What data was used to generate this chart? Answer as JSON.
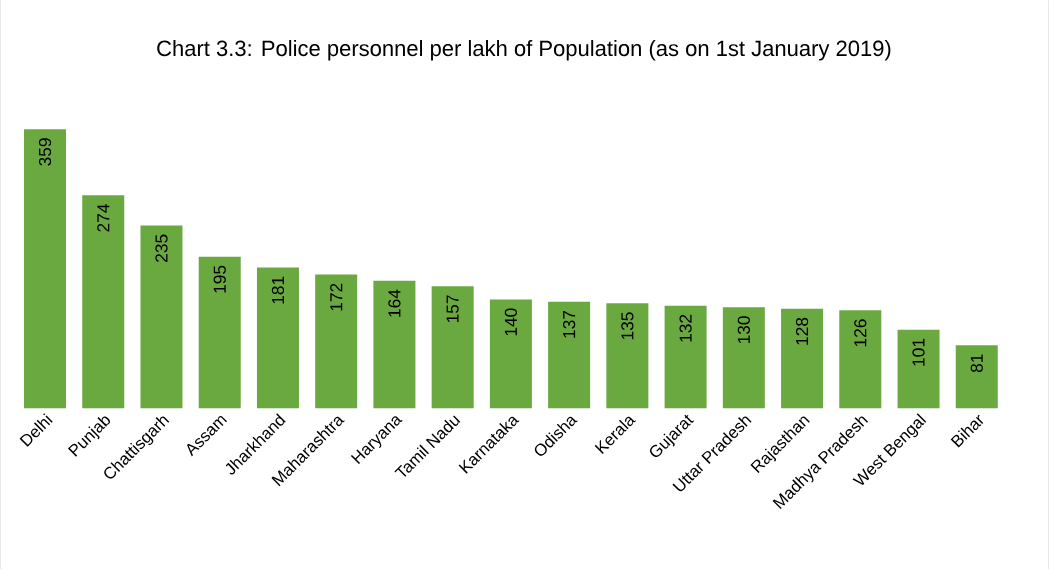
{
  "chart_data": {
    "type": "bar",
    "title": "Chart 3.3: Police personnel per lakh of Population (as on 1st January 2019)",
    "categories": [
      "Delhi",
      "Punjab",
      "Chattisgarh",
      "Assam",
      "Jharkhand",
      "Maharashtra",
      "Haryana",
      "Tamil Nadu",
      "Karnataka",
      "Odisha",
      "Kerala",
      "Gujarat",
      "Uttar Pradesh",
      "Rajasthan",
      "Madhya Pradesh",
      "West Bengal",
      "Bihar"
    ],
    "values": [
      359,
      274,
      235,
      195,
      181,
      172,
      164,
      157,
      140,
      137,
      135,
      132,
      130,
      128,
      126,
      101,
      81
    ],
    "color": "#6aa840",
    "data_labels": true
  }
}
